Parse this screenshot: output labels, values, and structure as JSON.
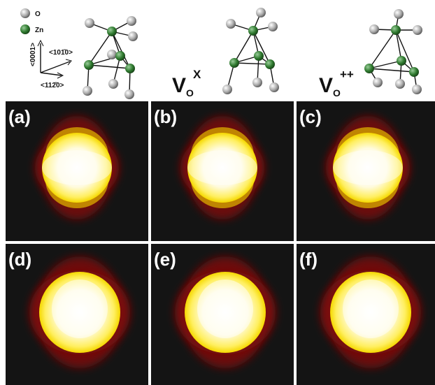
{
  "legend": {
    "items": [
      "O",
      "Zn"
    ]
  },
  "axes": {
    "vertical": "<0001>",
    "right": "<101̄0>",
    "left": "<112̄0>"
  },
  "structures": [
    {
      "base": "V",
      "sub": "O",
      "sup": "X"
    },
    {
      "base": "V",
      "sub": "O",
      "sup": "++"
    }
  ],
  "panels": [
    "(a)",
    "(b)",
    "(c)",
    "(d)",
    "(e)",
    "(f)"
  ]
}
